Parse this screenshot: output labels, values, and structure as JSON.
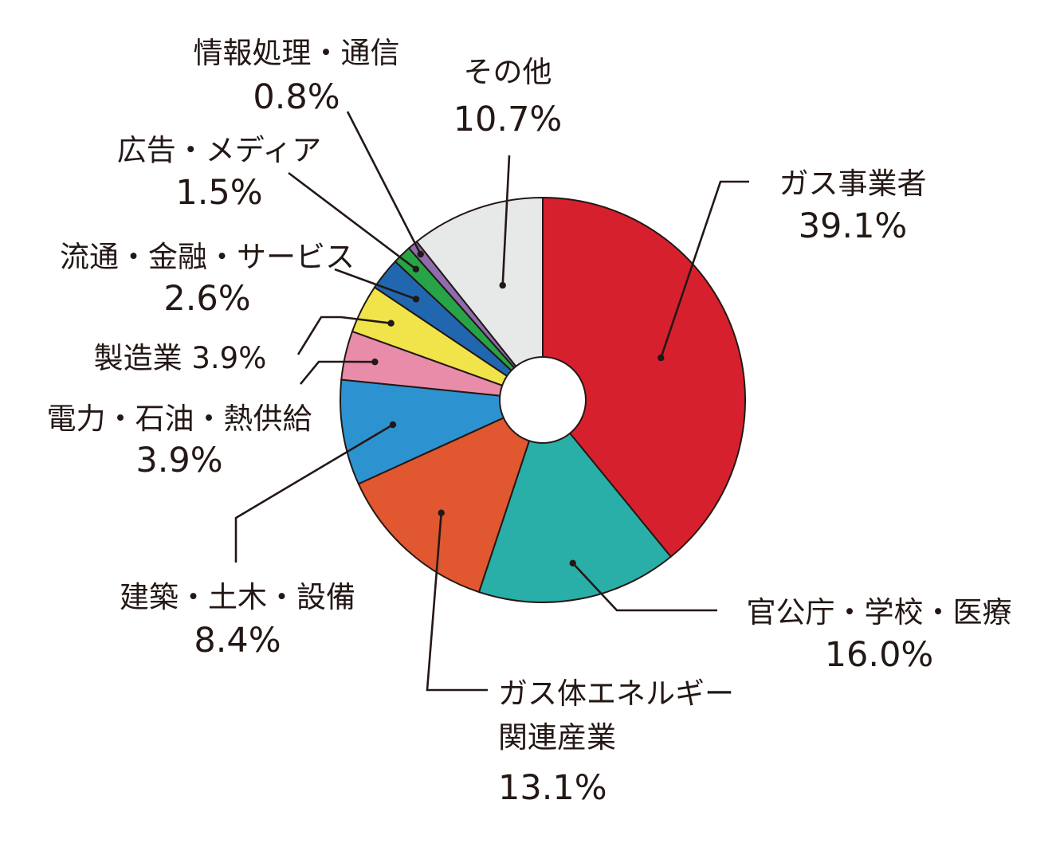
{
  "chart_data": {
    "type": "pie",
    "donut": true,
    "title": "",
    "slices": [
      {
        "name": "ガス事業者",
        "value": 39.1,
        "value_label": "39.1%",
        "color": "#d7202e"
      },
      {
        "name": "官公庁・学校・医療",
        "value": 16.0,
        "value_label": "16.0%",
        "color": "#2aaea8"
      },
      {
        "name": "ガス体エネルギー関連産業",
        "name_lines": [
          "ガス体エネルギー",
          "関連産業"
        ],
        "value": 13.1,
        "value_label": "13.1%",
        "color": "#e05730"
      },
      {
        "name": "建築・土木・設備",
        "value": 8.4,
        "value_label": "8.4%",
        "color": "#2c93d0"
      },
      {
        "name": "電力・石油・熱供給",
        "value": 3.9,
        "value_label": "3.9%",
        "color": "#e88ca9"
      },
      {
        "name": "製造業",
        "value": 3.9,
        "value_label": "3.9%",
        "color": "#f1e44b"
      },
      {
        "name": "流通・金融・サービス",
        "value": 2.6,
        "value_label": "2.6%",
        "color": "#2167b0"
      },
      {
        "name": "広告・メディア",
        "value": 1.5,
        "value_label": "1.5%",
        "color": "#27a447"
      },
      {
        "name": "情報処理・通信",
        "value": 0.8,
        "value_label": "0.8%",
        "color": "#8e6cae"
      },
      {
        "name": "その他",
        "value": 10.7,
        "value_label": "10.7%",
        "color": "#e7e8e8"
      }
    ]
  }
}
